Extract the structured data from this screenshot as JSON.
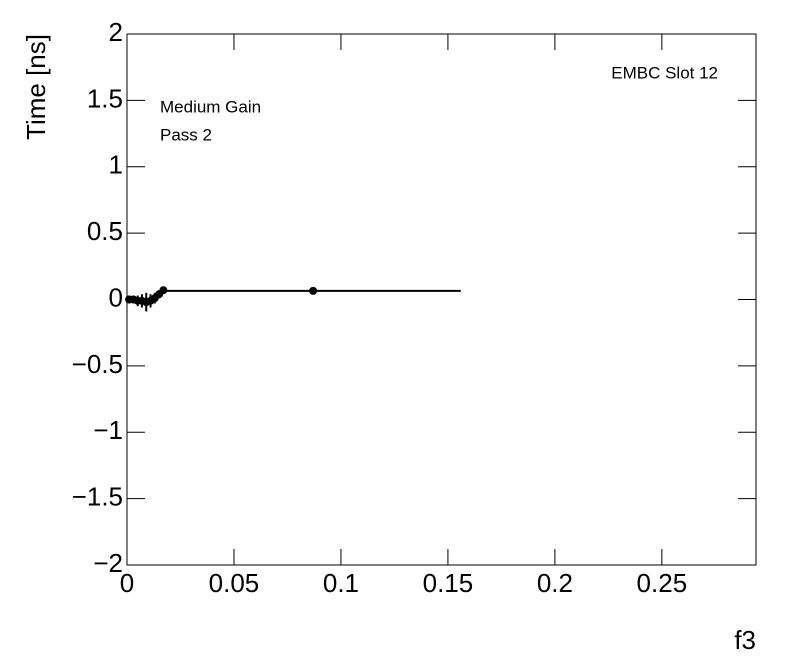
{
  "chart_data": {
    "type": "scatter",
    "annotations": [
      "EMBC Slot 12",
      "Medium Gain",
      "Pass 2"
    ],
    "x_label": "f3",
    "y_label": "Time [ns]",
    "xlim": [
      0,
      0.294
    ],
    "ylim": [
      -2,
      2
    ],
    "xticks": [
      0,
      0.05,
      0.1,
      0.15,
      0.2,
      0.25
    ],
    "yticks": [
      {
        "value": -2,
        "label": "−2"
      },
      {
        "value": -1.5,
        "label": "−1.5"
      },
      {
        "value": -1,
        "label": "−1"
      },
      {
        "value": -0.5,
        "label": "−0.5"
      },
      0,
      0.5,
      1,
      1.5,
      2
    ],
    "series": [
      {
        "color": "#000000",
        "x": [
          0.001,
          0.003,
          0.005,
          0.007,
          0.009,
          0.011,
          0.013,
          0.015,
          0.017,
          0.087
        ],
        "values": [
          0.0,
          0.0,
          -0.01,
          -0.01,
          -0.02,
          -0.01,
          0.01,
          0.04,
          0.07,
          0.065
        ],
        "x_errors": [
          0.001,
          0.001,
          0.001,
          0.001,
          0.001,
          0.001,
          0.001,
          0.001,
          0.001,
          0.069
        ],
        "y_errors": [
          0.03,
          0.03,
          0.04,
          0.05,
          0.07,
          0.05,
          0.04,
          0.03,
          0.02,
          0.01
        ]
      }
    ]
  }
}
